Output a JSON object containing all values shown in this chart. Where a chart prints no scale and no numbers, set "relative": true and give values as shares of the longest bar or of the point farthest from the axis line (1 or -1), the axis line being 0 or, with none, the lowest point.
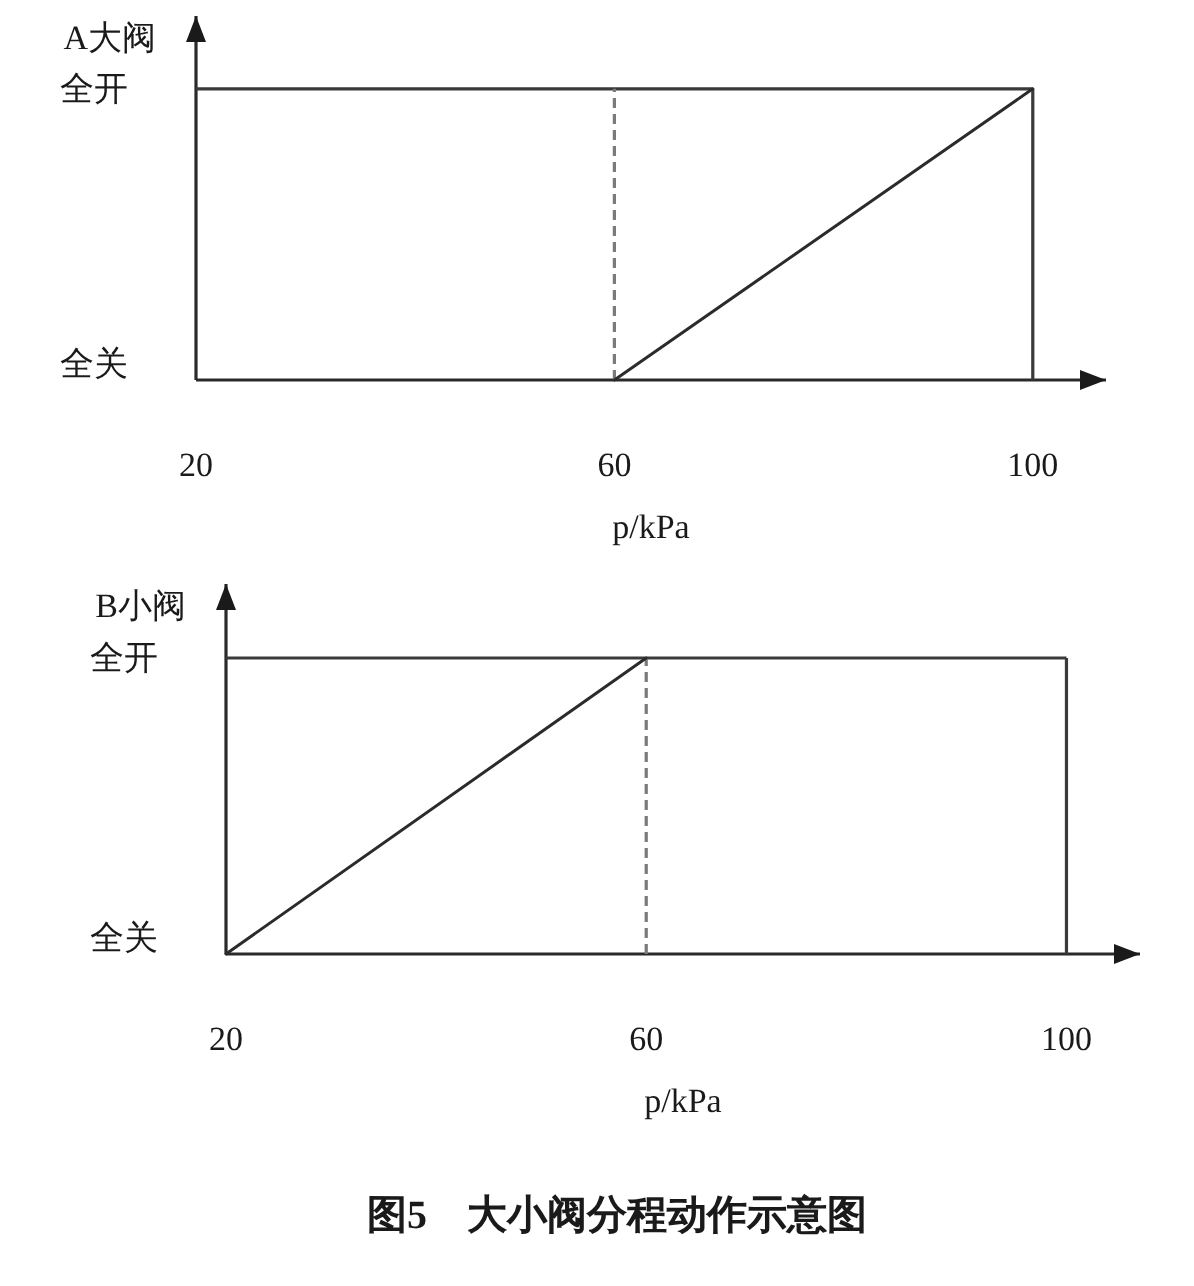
{
  "chart_data": [
    {
      "type": "line",
      "relative": true,
      "ylabel": "A大阀",
      "xlabel": "p/kPa",
      "xlim": [
        20,
        107
      ],
      "xticks": [
        20,
        60,
        100
      ],
      "series": [
        {
          "x": [
            60,
            100
          ],
          "values": [
            0,
            1
          ],
          "color": "#2b2b2b"
        }
      ],
      "ref_lines": [
        {
          "axis": "y",
          "value": 1,
          "label": "全开",
          "color": "#3a3a3a",
          "line_style": "solid"
        },
        {
          "axis": "x",
          "value": 100,
          "color": "#3a3a3a",
          "line_style": "solid"
        },
        {
          "axis": "x",
          "value": 60,
          "color": "#7a7a7a",
          "line_style": "dashed"
        }
      ],
      "annotations": [
        "全关"
      ]
    },
    {
      "type": "line",
      "relative": true,
      "ylabel": "B小阀",
      "xlabel": "p/kPa",
      "xlim": [
        20,
        107
      ],
      "xticks": [
        20,
        60,
        100
      ],
      "series": [
        {
          "x": [
            20,
            60
          ],
          "values": [
            0,
            1
          ],
          "color": "#2b2b2b"
        }
      ],
      "ref_lines": [
        {
          "axis": "y",
          "value": 1,
          "label": "全开",
          "color": "#3a3a3a",
          "line_style": "solid"
        },
        {
          "axis": "x",
          "value": 100,
          "color": "#3a3a3a",
          "line_style": "solid"
        },
        {
          "axis": "x",
          "value": 60,
          "color": "#7a7a7a",
          "line_style": "dashed"
        }
      ],
      "annotations": [
        "全关",
        "图5　大小阀分程动作示意图"
      ]
    }
  ]
}
